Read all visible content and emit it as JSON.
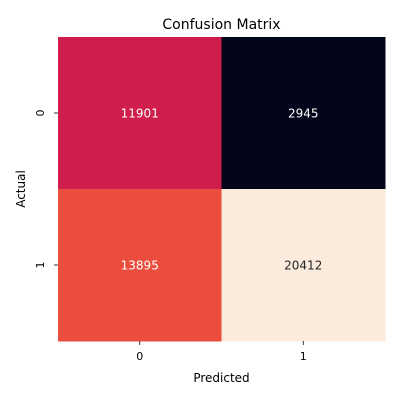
{
  "chart_data": {
    "type": "heatmap",
    "title": "Confusion Matrix",
    "xlabel": "Predicted",
    "ylabel": "Actual",
    "x_categories": [
      "0",
      "1"
    ],
    "y_categories": [
      "0",
      "1"
    ],
    "values": [
      [
        11901,
        2945
      ],
      [
        13895,
        20412
      ]
    ],
    "cell_colors": [
      [
        "#cf1d4c",
        "#03051a"
      ],
      [
        "#ec4e3d",
        "#faebdd"
      ]
    ],
    "value_text_color": "#ffffff",
    "value_text_color_light_cell": "#262626",
    "colorbar": false
  }
}
